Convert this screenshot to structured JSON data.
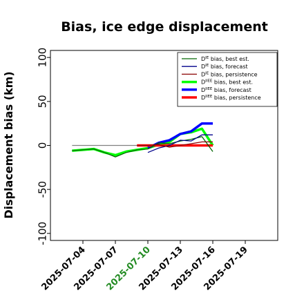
{
  "chart_data": {
    "type": "line",
    "title": "Bias, ice edge displacement",
    "ylabel": "Displacement bias (km)",
    "xlabel": "",
    "xlim": [
      "2025-07-01",
      "2025-07-22"
    ],
    "ylim": [
      -108,
      108
    ],
    "yticks": [
      -100,
      -50,
      0,
      50,
      100
    ],
    "xticks": [
      "2025-07-04",
      "2025-07-07",
      "2025-07-10",
      "2025-07-13",
      "2025-07-16",
      "2025-07-19"
    ],
    "highlighted_xtick": "2025-07-10",
    "highlight_color": "#228b22",
    "reference_line": 0,
    "grid": false,
    "legend_position": "upper right",
    "series": [
      {
        "name_prefix": "D",
        "name_sup": "IE",
        "name_suffix": " bias, best est.",
        "color": "#006400",
        "width": 1.3,
        "x": [
          "2025-07-03",
          "2025-07-04",
          "2025-07-05",
          "2025-07-06",
          "2025-07-07",
          "2025-07-08",
          "2025-07-09",
          "2025-07-10",
          "2025-07-11",
          "2025-07-12",
          "2025-07-13",
          "2025-07-14",
          "2025-07-15",
          "2025-07-16"
        ],
        "y": [
          -6,
          -5,
          -4,
          -8,
          -13,
          -8,
          -5,
          -4,
          3,
          2,
          5,
          7,
          10,
          -7
        ]
      },
      {
        "name_prefix": "D",
        "name_sup": "IE",
        "name_suffix": " bias, forecast",
        "color": "#00008b",
        "width": 1.3,
        "x": [
          "2025-07-10",
          "2025-07-11",
          "2025-07-12",
          "2025-07-13",
          "2025-07-14",
          "2025-07-15",
          "2025-07-16"
        ],
        "y": [
          -8,
          -3,
          0,
          6,
          5,
          12,
          12
        ]
      },
      {
        "name_prefix": "D",
        "name_sup": "IE",
        "name_suffix": " bias, persistence",
        "color": "#8b0000",
        "width": 1.3,
        "x": [
          "2025-07-09",
          "2025-07-10",
          "2025-07-11",
          "2025-07-12",
          "2025-07-13",
          "2025-07-14",
          "2025-07-15",
          "2025-07-16"
        ],
        "y": [
          0,
          0,
          1,
          -2,
          0,
          2,
          4,
          4
        ]
      },
      {
        "name_prefix": "D",
        "name_sup": "IIEE",
        "name_suffix": " bias, best est.",
        "color": "#00ff00",
        "width": 3.5,
        "x": [
          "2025-07-03",
          "2025-07-04",
          "2025-07-05",
          "2025-07-06",
          "2025-07-07",
          "2025-07-08",
          "2025-07-09",
          "2025-07-10",
          "2025-07-11",
          "2025-07-12",
          "2025-07-13",
          "2025-07-14",
          "2025-07-15",
          "2025-07-16"
        ],
        "y": [
          -6,
          -5,
          -4,
          -8,
          -11,
          -7,
          -5,
          -3,
          1,
          4,
          13,
          15,
          19,
          0
        ]
      },
      {
        "name_prefix": "D",
        "name_sup": "IIEE",
        "name_suffix": " bias, forecast",
        "color": "#0000ff",
        "width": 3.5,
        "x": [
          "2025-07-10",
          "2025-07-11",
          "2025-07-12",
          "2025-07-13",
          "2025-07-14",
          "2025-07-15",
          "2025-07-16"
        ],
        "y": [
          -3,
          3,
          6,
          13,
          16,
          25,
          25
        ]
      },
      {
        "name_prefix": "D",
        "name_sup": "IIEE",
        "name_suffix": " bias, persistence",
        "color": "#ff0000",
        "width": 3.5,
        "x": [
          "2025-07-09",
          "2025-07-10",
          "2025-07-11",
          "2025-07-12",
          "2025-07-13",
          "2025-07-14",
          "2025-07-15",
          "2025-07-16"
        ],
        "y": [
          0,
          0,
          0,
          0,
          0,
          0,
          0,
          0
        ]
      }
    ]
  }
}
